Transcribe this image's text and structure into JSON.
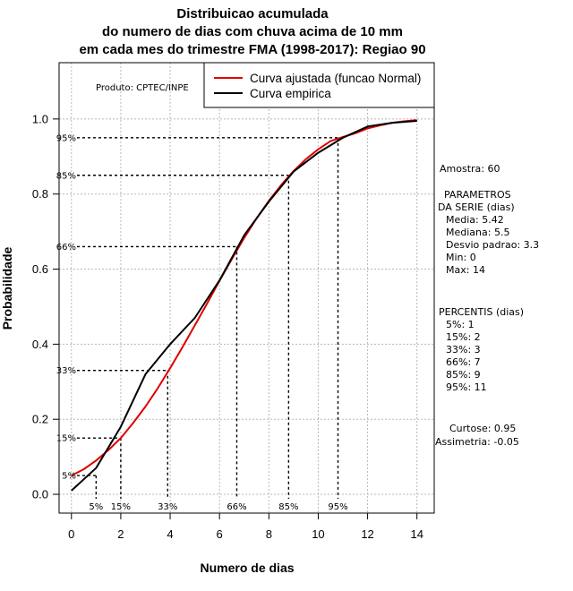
{
  "chart_data": {
    "type": "line",
    "title_lines": [
      "Distribuicao acumulada",
      "do numero de dias com chuva acima de 10 mm",
      "em cada mes do trimestre FMA (1998-2017): Regiao 90"
    ],
    "xlabel": "Numero de dias",
    "ylabel": "Probabilidade",
    "xlim": [
      -0.5,
      14.7
    ],
    "ylim": [
      -0.05,
      1.15
    ],
    "x_ticks": [
      0,
      2,
      4,
      6,
      8,
      10,
      12,
      14
    ],
    "x_tick_labels": [
      "0",
      "2",
      "4",
      "6",
      "8",
      "10",
      "12",
      "14"
    ],
    "y_ticks": [
      0.0,
      0.2,
      0.4,
      0.6,
      0.8,
      1.0
    ],
    "y_tick_labels": [
      "0.0",
      "0.2",
      "0.4",
      "0.6",
      "0.8",
      "1.0"
    ],
    "grid": true,
    "product_label": "Produto: CPTEC/INPE",
    "legend": {
      "position": "top-right",
      "entries": [
        {
          "label": "Curva ajustada (funcao Normal)",
          "color": "#e00000"
        },
        {
          "label": "Curva empirica",
          "color": "#000000"
        }
      ]
    },
    "series": [
      {
        "name": "Curva ajustada (funcao Normal)",
        "color": "#e00000",
        "x": [
          0,
          0.5,
          1,
          1.5,
          2,
          2.5,
          3,
          3.5,
          4,
          4.5,
          5,
          5.5,
          6,
          6.5,
          7,
          7.5,
          8,
          8.5,
          9,
          9.5,
          10,
          10.5,
          11,
          11.5,
          12,
          12.5,
          13,
          13.5,
          14
        ],
        "y": [
          0.05,
          0.067,
          0.09,
          0.118,
          0.15,
          0.19,
          0.234,
          0.283,
          0.336,
          0.392,
          0.45,
          0.509,
          0.569,
          0.627,
          0.683,
          0.735,
          0.782,
          0.824,
          0.861,
          0.893,
          0.919,
          0.941,
          0.952,
          0.962,
          0.975,
          0.983,
          0.99,
          0.994,
          0.997
        ]
      },
      {
        "name": "Curva empirica",
        "color": "#000000",
        "x": [
          0,
          1,
          2,
          3,
          4,
          5,
          6,
          7,
          8,
          9,
          10,
          11,
          12,
          13,
          14
        ],
        "y": [
          0.01,
          0.07,
          0.18,
          0.32,
          0.4,
          0.47,
          0.57,
          0.69,
          0.78,
          0.86,
          0.91,
          0.95,
          0.98,
          0.99,
          0.995
        ]
      }
    ],
    "percentile_markers": [
      {
        "label": "5%",
        "y": 0.05,
        "x": 1
      },
      {
        "label": "15%",
        "y": 0.15,
        "x": 2
      },
      {
        "label": "33%",
        "y": 0.33,
        "x": 3.9
      },
      {
        "label": "66%",
        "y": 0.66,
        "x": 6.7
      },
      {
        "label": "85%",
        "y": 0.85,
        "x": 8.8
      },
      {
        "label": "95%",
        "y": 0.95,
        "x": 10.8
      }
    ],
    "side_panel": {
      "amostra": "Amostra: 60",
      "params_header": [
        "PARAMETROS",
        "DA SERIE (dias)"
      ],
      "params": [
        "Media: 5.42",
        "Mediana: 5.5",
        "Desvio padrao: 3.3",
        "Min: 0",
        "Max: 14"
      ],
      "percentis_header": "PERCENTIS (dias)",
      "percentis": [
        "5%: 1",
        "15%: 2",
        "33%: 3",
        "66%: 7",
        "85%: 9",
        "95%: 11"
      ],
      "curtose": "Curtose: 0.95",
      "assimetria": "Assimetria: -0.05"
    }
  }
}
